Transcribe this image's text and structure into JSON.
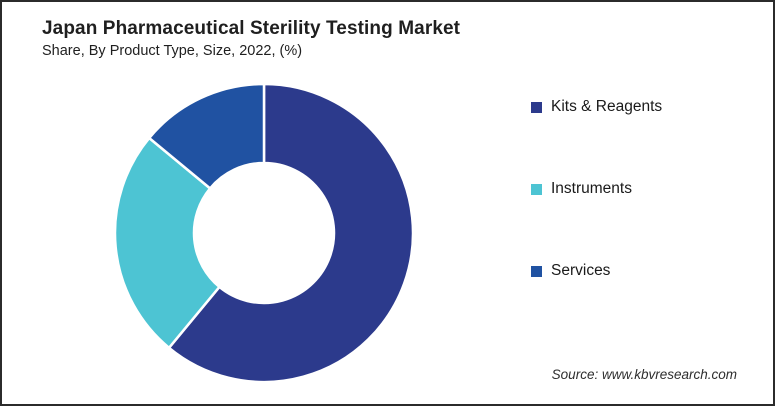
{
  "header": {
    "title": "Japan Pharmaceutical Sterility Testing Market",
    "subtitle": "Share, By Product Type, Size, 2022, (%)"
  },
  "source": {
    "label": "Source: www.kbvresearch.com"
  },
  "colors": {
    "kits_reagents": "#2C3A8C",
    "instruments": "#4DC4D3",
    "services": "#2052A2",
    "separator": "#FFFFFF",
    "border": "#2B2B2B",
    "text": "#1F1F1F"
  },
  "chart_data": {
    "type": "pie",
    "subtype": "donut",
    "title": "Japan Pharmaceutical Sterility Testing Market Share, By Product Type, Size, 2022, (%)",
    "categories": [
      "Kits & Reagents",
      "Instruments",
      "Services"
    ],
    "values": [
      61,
      25,
      14
    ],
    "unit": "%",
    "colors": [
      "#2C3A8C",
      "#4DC4D3",
      "#2052A2"
    ],
    "start_angle_deg": 0,
    "direction": "clockwise",
    "inner_radius_ratio": 0.47,
    "legend_position": "right",
    "data_labels": false,
    "note": "values estimated from slice angles; no data labels shown"
  },
  "legend": {
    "items": [
      {
        "label": "Kits & Reagents",
        "color": "#2C3A8C"
      },
      {
        "label": "Instruments",
        "color": "#4DC4D3"
      },
      {
        "label": "Services",
        "color": "#2052A2"
      }
    ]
  }
}
